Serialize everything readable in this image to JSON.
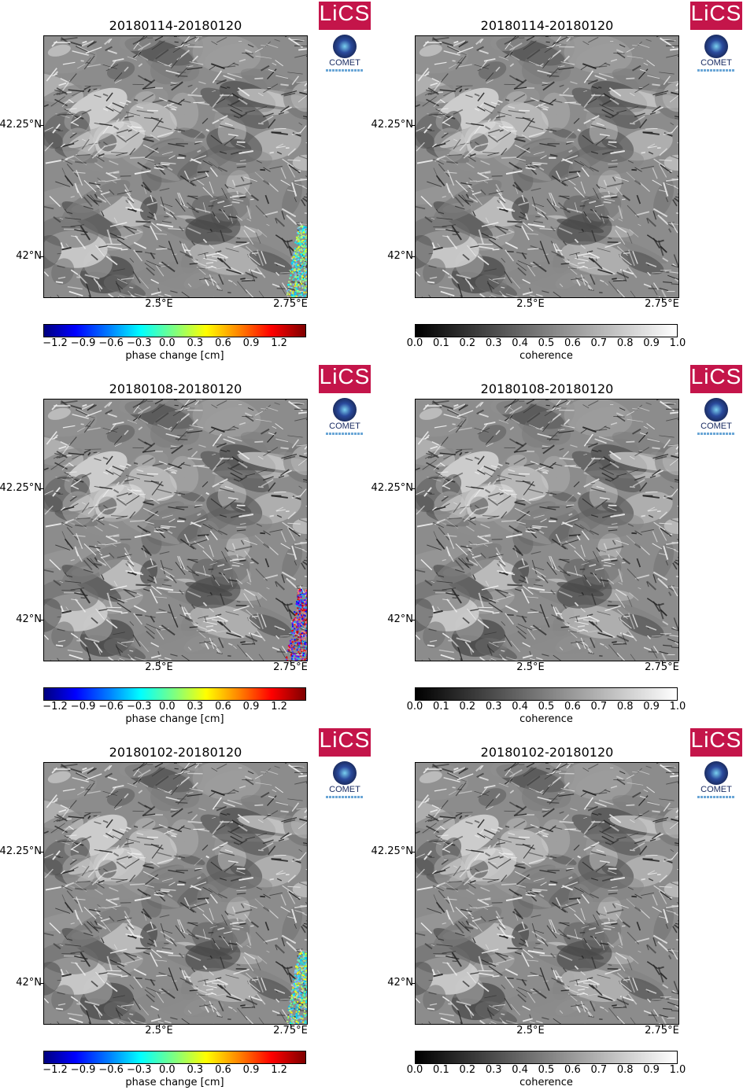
{
  "panels": [
    {
      "title": "20180114-20180120",
      "type": "phase",
      "overlay": "colorful",
      "cbar_label": "phase change [cm]",
      "cbar_ticks": [
        "−1.2",
        "−0.9",
        "−0.6",
        "−0.3",
        "0.0",
        "0.3",
        "0.6",
        "0.9",
        "1.2"
      ]
    },
    {
      "title": "20180114-20180120",
      "type": "coherence",
      "overlay": "none",
      "cbar_label": "coherence",
      "cbar_ticks": [
        "0.0",
        "0.1",
        "0.2",
        "0.3",
        "0.4",
        "0.5",
        "0.6",
        "0.7",
        "0.8",
        "0.9",
        "1.0"
      ]
    },
    {
      "title": "20180108-20180120",
      "type": "phase",
      "overlay": "noisy",
      "cbar_label": "phase change [cm]",
      "cbar_ticks": [
        "−1.2",
        "−0.9",
        "−0.6",
        "−0.3",
        "0.0",
        "0.3",
        "0.6",
        "0.9",
        "1.2"
      ]
    },
    {
      "title": "20180108-20180120",
      "type": "coherence",
      "overlay": "none",
      "cbar_label": "coherence",
      "cbar_ticks": [
        "0.0",
        "0.1",
        "0.2",
        "0.3",
        "0.4",
        "0.5",
        "0.6",
        "0.7",
        "0.8",
        "0.9",
        "1.0"
      ]
    },
    {
      "title": "20180102-20180120",
      "type": "phase",
      "overlay": "colorful",
      "cbar_label": "phase change [cm]",
      "cbar_ticks": [
        "−1.2",
        "−0.9",
        "−0.6",
        "−0.3",
        "0.0",
        "0.3",
        "0.6",
        "0.9",
        "1.2"
      ]
    },
    {
      "title": "20180102-20180120",
      "type": "coherence",
      "overlay": "none",
      "cbar_label": "coherence",
      "cbar_ticks": [
        "0.0",
        "0.1",
        "0.2",
        "0.3",
        "0.4",
        "0.5",
        "0.6",
        "0.7",
        "0.8",
        "0.9",
        "1.0"
      ]
    }
  ],
  "axes": {
    "y_ticks": [
      "42.25°N",
      "42°N"
    ],
    "x_ticks": [
      "2.5°E",
      "2.75°E"
    ]
  },
  "logos": {
    "lics": "LiCS",
    "comet": "COMET"
  },
  "colors": {
    "lics_bg": "#c4154a",
    "comet_blue": "#1b2d63"
  }
}
